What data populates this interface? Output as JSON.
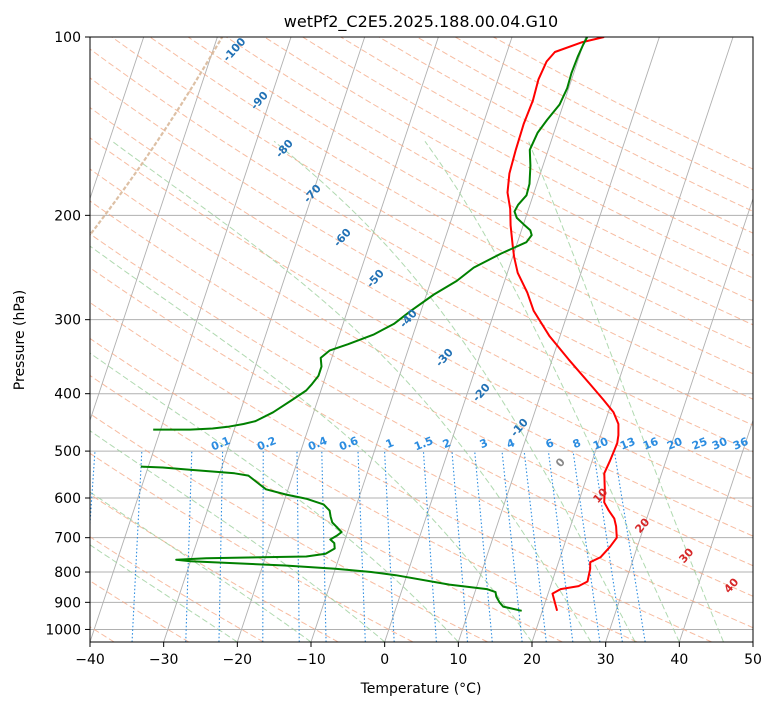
{
  "chart_data": {
    "type": "line",
    "title": "wetPf2_C2E5.2025.188.00.04.G10",
    "xlabel": "Temperature (°C)",
    "ylabel": "Pressure (hPa)",
    "xlim": [
      -40,
      50
    ],
    "ylim": [
      1050,
      100
    ],
    "y_scale": "log",
    "xticks": [
      "−40",
      "−30",
      "−20",
      "−10",
      "0",
      "10",
      "20",
      "30",
      "40",
      "50"
    ],
    "yticks": [
      "100",
      "200",
      "300",
      "400",
      "500",
      "600",
      "700",
      "800",
      "900",
      "1000"
    ],
    "grid": true,
    "series": [
      {
        "color": "#ff0000",
        "points": [
          [
            22,
            930
          ],
          [
            21.3,
            900
          ],
          [
            20.6,
            870
          ],
          [
            21.5,
            855
          ],
          [
            23.8,
            845
          ],
          [
            24.8,
            830
          ],
          [
            24.6,
            790
          ],
          [
            24.3,
            770
          ],
          [
            25.5,
            755
          ],
          [
            26.3,
            725
          ],
          [
            26.8,
            700
          ],
          [
            26.2,
            670
          ],
          [
            25.6,
            650
          ],
          [
            24.5,
            630
          ],
          [
            23.5,
            610
          ],
          [
            23,
            580
          ],
          [
            22.2,
            545
          ],
          [
            22.4,
            520
          ],
          [
            22.6,
            485
          ],
          [
            22.4,
            470
          ],
          [
            21.9,
            450
          ],
          [
            20.7,
            430
          ],
          [
            18.8,
            410
          ],
          [
            16.2,
            385
          ],
          [
            12.2,
            350
          ],
          [
            8.6,
            320
          ],
          [
            5.3,
            290
          ],
          [
            3.6,
            270
          ],
          [
            1.4,
            250
          ],
          [
            0.2,
            235
          ],
          [
            -0.5,
            225
          ],
          [
            -1.7,
            208
          ],
          [
            -2.5,
            195
          ],
          [
            -3.6,
            183
          ],
          [
            -4.2,
            170
          ],
          [
            -4.4,
            155
          ],
          [
            -4.5,
            140
          ],
          [
            -4.3,
            128
          ],
          [
            -4.5,
            118
          ],
          [
            -4.2,
            110
          ],
          [
            -3.5,
            106
          ],
          [
            -0.2,
            102
          ],
          [
            2.5,
            100
          ]
        ]
      },
      {
        "color": "#008000",
        "points": [
          [
            17.2,
            930
          ],
          [
            14.5,
            915
          ],
          [
            13.8,
            900
          ],
          [
            13.1,
            880
          ],
          [
            12.8,
            865
          ],
          [
            11.5,
            855
          ],
          [
            6.2,
            840
          ],
          [
            -1.5,
            810
          ],
          [
            -5,
            800
          ],
          [
            -10,
            790
          ],
          [
            -17,
            780
          ],
          [
            -25,
            772
          ],
          [
            -30,
            767
          ],
          [
            -32,
            763
          ],
          [
            -28,
            758
          ],
          [
            -14.5,
            753
          ],
          [
            -12,
            745
          ],
          [
            -11,
            730
          ],
          [
            -11.3,
            715
          ],
          [
            -12,
            705
          ],
          [
            -11.3,
            695
          ],
          [
            -10.8,
            685
          ],
          [
            -11.8,
            670
          ],
          [
            -12.5,
            660
          ],
          [
            -13,
            645
          ],
          [
            -13.4,
            630
          ],
          [
            -14.5,
            615
          ],
          [
            -17,
            602
          ],
          [
            -20,
            592
          ],
          [
            -23,
            580
          ],
          [
            -24.5,
            565
          ],
          [
            -26,
            550
          ],
          [
            -28,
            545
          ],
          [
            -34,
            538
          ],
          [
            -38,
            533
          ],
          [
            -41,
            531
          ]
        ]
      },
      {
        "color": "#008000",
        "points": [
          [
            -41,
            460
          ],
          [
            -36,
            460
          ],
          [
            -33,
            458
          ],
          [
            -31,
            455
          ],
          [
            -29,
            450
          ],
          [
            -27.5,
            445
          ],
          [
            -25.5,
            430
          ],
          [
            -24.5,
            420
          ],
          [
            -23.5,
            410
          ],
          [
            -22,
            395
          ],
          [
            -21.5,
            385
          ],
          [
            -21,
            373
          ],
          [
            -21,
            360
          ],
          [
            -21.5,
            348
          ],
          [
            -20.6,
            338
          ],
          [
            -18.4,
            330
          ],
          [
            -15.4,
            318
          ],
          [
            -13.1,
            305
          ],
          [
            -11.4,
            290
          ],
          [
            -9,
            272
          ],
          [
            -6.5,
            258
          ],
          [
            -4.8,
            245
          ],
          [
            -1.7,
            232
          ],
          [
            1.2,
            222
          ],
          [
            1.6,
            216
          ],
          [
            1.2,
            212
          ],
          [
            0,
            207
          ],
          [
            -1.2,
            202
          ],
          [
            -1.8,
            197
          ],
          [
            -1.6,
            192
          ],
          [
            -0.9,
            185
          ],
          [
            -1,
            177
          ],
          [
            -1.7,
            165
          ],
          [
            -2.5,
            155
          ],
          [
            -2.2,
            145
          ],
          [
            -1.5,
            138
          ],
          [
            -0.5,
            130
          ],
          [
            -0.2,
            122
          ],
          [
            -0.3,
            115
          ],
          [
            -0.2,
            108
          ],
          [
            0,
            103
          ],
          [
            0.2,
            100
          ]
        ]
      }
    ],
    "dry_adiabat_labels": [
      "-100",
      "-90",
      "-80",
      "-70",
      "-60",
      "-50",
      "-40",
      "-30",
      "-20",
      "-10",
      "0",
      "10",
      "20",
      "30",
      "40"
    ],
    "mixing_ratio_labels": [
      "0.1",
      "0.2",
      "0.4",
      "0.6",
      "1",
      "1.5",
      "2",
      "3",
      "4",
      "6",
      "8",
      "10",
      "13",
      "16",
      "20",
      "25",
      "30",
      "36"
    ],
    "colors": {
      "isotherm": "#b0b0b0",
      "isobar": "#b0b0b0",
      "dry_adiabat": "#f4a582",
      "moist_adiabat": "#9ccf9c",
      "mixing_ratio": "#2b8ce0",
      "dry_label_cold": "#2171b5",
      "dry_label_neutral": "#888888",
      "dry_label_warm": "#d62728",
      "mixing_label": "#2b8ce0",
      "ccl_curve": "#d9b99b"
    }
  }
}
